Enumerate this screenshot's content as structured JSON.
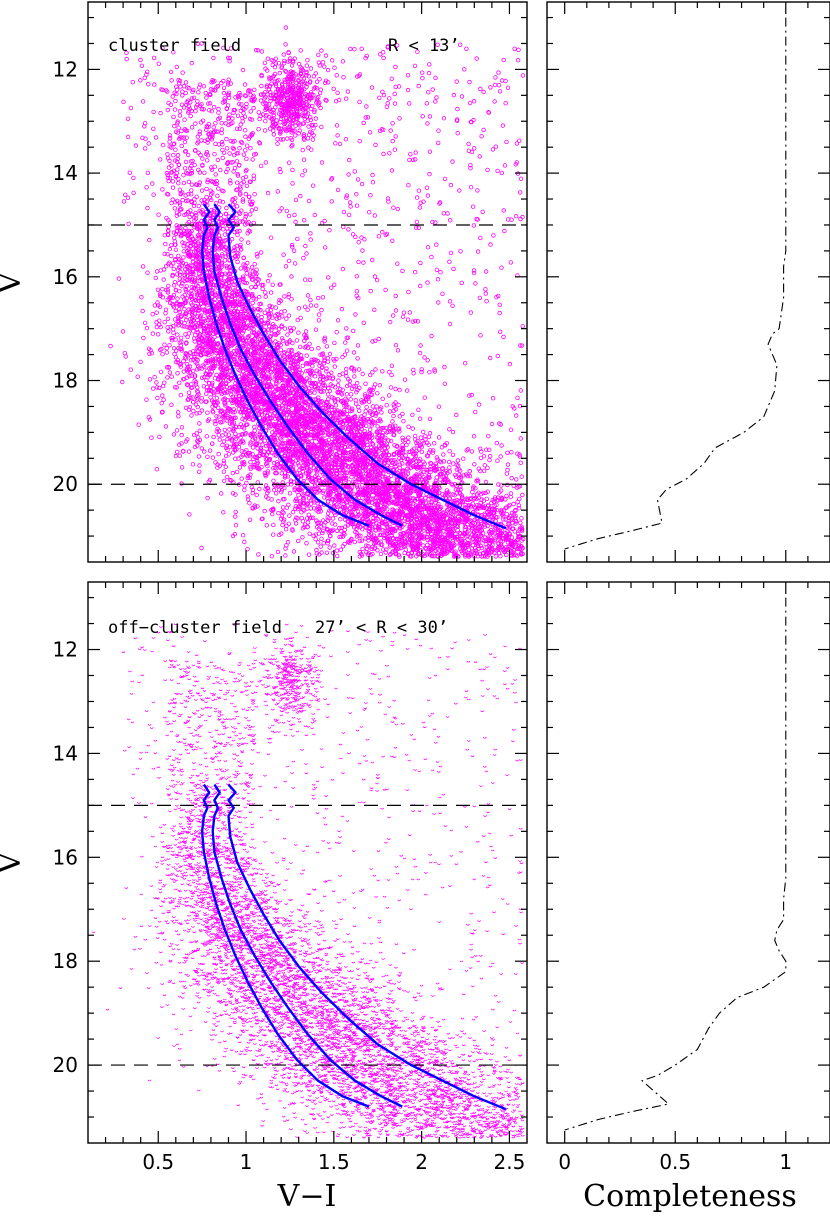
{
  "figure": {
    "xlabel_cmd": "V−I",
    "xlabel_completeness": "Completeness",
    "ylabel": "V"
  },
  "chart_data": [
    {
      "type": "scatter",
      "panel": "top-left",
      "title": "",
      "annotations": [
        "cluster field",
        "R < 13’"
      ],
      "xlabel": "V−I",
      "ylabel": "V",
      "xlim": [
        0.1,
        2.6
      ],
      "ylim": [
        21.5,
        10.7
      ],
      "x_ticks": [
        "0.5",
        "1",
        "1.5",
        "2",
        "2.5"
      ],
      "y_ticks": [
        "12",
        "14",
        "16",
        "18",
        "20"
      ],
      "y_ticks_values": [
        12,
        14,
        16,
        18,
        20
      ],
      "x_ticks_values": [
        0.5,
        1,
        1.5,
        2,
        2.5
      ],
      "reference_lines_V": [
        15,
        20
      ],
      "point_color": "#ff00ff",
      "point_marker": "open-circle",
      "curve_color": "#0000ff",
      "curves": [
        {
          "x": [
            0.76,
            0.79,
            0.76,
            0.78,
            0.76,
            0.75,
            0.76,
            0.79,
            0.83,
            0.88,
            0.94,
            1.01,
            1.09,
            1.18,
            1.29,
            1.41,
            1.55,
            1.7
          ],
          "y": [
            14.6,
            14.75,
            14.9,
            15.05,
            15.2,
            15.5,
            15.9,
            16.4,
            16.9,
            17.4,
            17.9,
            18.4,
            18.9,
            19.4,
            19.9,
            20.3,
            20.6,
            20.8
          ]
        },
        {
          "x": [
            0.82,
            0.85,
            0.82,
            0.84,
            0.82,
            0.81,
            0.82,
            0.86,
            0.91,
            0.97,
            1.05,
            1.14,
            1.24,
            1.35,
            1.48,
            1.62,
            1.77,
            1.89
          ],
          "y": [
            14.6,
            14.75,
            14.9,
            15.05,
            15.2,
            15.5,
            15.9,
            16.4,
            16.9,
            17.4,
            17.9,
            18.4,
            18.9,
            19.4,
            19.9,
            20.3,
            20.6,
            20.8
          ]
        },
        {
          "x": [
            0.9,
            0.94,
            0.9,
            0.93,
            0.9,
            0.91,
            0.95,
            1.02,
            1.1,
            1.19,
            1.3,
            1.43,
            1.58,
            1.75,
            1.94,
            2.12,
            2.3,
            2.48
          ],
          "y": [
            14.6,
            14.75,
            14.9,
            15.05,
            15.2,
            15.6,
            16.1,
            16.6,
            17.1,
            17.6,
            18.1,
            18.6,
            19.1,
            19.6,
            20.0,
            20.3,
            20.6,
            20.85
          ]
        }
      ]
    },
    {
      "type": "line",
      "panel": "top-right",
      "title": "",
      "xlabel": "Completeness",
      "xlim": [
        -0.08,
        1.2
      ],
      "ylim": [
        21.5,
        10.7
      ],
      "line_style": "dash-dot",
      "x": [
        1.0,
        1.0,
        0.99,
        0.99,
        0.97,
        0.94,
        0.92,
        0.96,
        0.95,
        0.9,
        0.81,
        0.68,
        0.63,
        0.55,
        0.46,
        0.42,
        0.44,
        0.3,
        0.15,
        0.0
      ],
      "y": [
        11.0,
        15.5,
        15.8,
        16.4,
        17.0,
        17.1,
        17.3,
        17.7,
        18.2,
        18.7,
        19.0,
        19.3,
        19.6,
        19.9,
        20.1,
        20.3,
        20.75,
        20.9,
        21.05,
        21.25
      ]
    },
    {
      "type": "scatter",
      "panel": "bottom-left",
      "title": "",
      "annotations": [
        "off−cluster field",
        "27’ < R < 30’"
      ],
      "xlabel": "V−I",
      "ylabel": "V",
      "xlim": [
        0.1,
        2.6
      ],
      "ylim": [
        21.5,
        10.7
      ],
      "x_ticks": [
        "0.5",
        "1",
        "1.5",
        "2",
        "2.5"
      ],
      "y_ticks": [
        "12",
        "14",
        "16",
        "18",
        "20"
      ],
      "y_ticks_values": [
        12,
        14,
        16,
        18,
        20
      ],
      "x_ticks_values": [
        0.5,
        1,
        1.5,
        2,
        2.5
      ],
      "reference_lines_V": [
        15,
        20
      ],
      "point_color": "#ff00ff",
      "point_marker": "small-arc",
      "curve_color": "#0000ff",
      "curves": [
        {
          "x": [
            0.76,
            0.79,
            0.76,
            0.78,
            0.76,
            0.75,
            0.76,
            0.79,
            0.83,
            0.88,
            0.94,
            1.01,
            1.09,
            1.18,
            1.29,
            1.41,
            1.55,
            1.7
          ],
          "y": [
            14.6,
            14.75,
            14.9,
            15.05,
            15.2,
            15.5,
            15.9,
            16.4,
            16.9,
            17.4,
            17.9,
            18.4,
            18.9,
            19.4,
            19.9,
            20.3,
            20.6,
            20.8
          ]
        },
        {
          "x": [
            0.82,
            0.85,
            0.82,
            0.84,
            0.82,
            0.81,
            0.82,
            0.86,
            0.91,
            0.97,
            1.05,
            1.14,
            1.24,
            1.35,
            1.48,
            1.62,
            1.77,
            1.89
          ],
          "y": [
            14.6,
            14.75,
            14.9,
            15.05,
            15.2,
            15.5,
            15.9,
            16.4,
            16.9,
            17.4,
            17.9,
            18.4,
            18.9,
            19.4,
            19.9,
            20.3,
            20.6,
            20.8
          ]
        },
        {
          "x": [
            0.9,
            0.94,
            0.9,
            0.93,
            0.9,
            0.91,
            0.95,
            1.02,
            1.1,
            1.19,
            1.3,
            1.43,
            1.58,
            1.75,
            1.94,
            2.12,
            2.3,
            2.48
          ],
          "y": [
            14.6,
            14.75,
            14.9,
            15.05,
            15.2,
            15.6,
            16.1,
            16.6,
            17.1,
            17.6,
            18.1,
            18.6,
            19.1,
            19.6,
            20.0,
            20.3,
            20.6,
            20.85
          ]
        }
      ]
    },
    {
      "type": "line",
      "panel": "bottom-right",
      "title": "",
      "xlabel": "Completeness",
      "x_ticks": [
        "0",
        "0.5",
        "1"
      ],
      "x_ticks_values": [
        0,
        0.5,
        1
      ],
      "xlim": [
        -0.08,
        1.2
      ],
      "ylim": [
        21.5,
        10.7
      ],
      "line_style": "dash-dot",
      "x": [
        1.0,
        1.0,
        0.99,
        0.99,
        0.96,
        0.95,
        0.97,
        1.0,
        1.0,
        0.9,
        0.78,
        0.7,
        0.65,
        0.6,
        0.5,
        0.42,
        0.35,
        0.47,
        0.3,
        0.15,
        0.0
      ],
      "y": [
        11.0,
        16.4,
        16.8,
        17.2,
        17.4,
        17.6,
        17.8,
        18.0,
        18.2,
        18.5,
        18.7,
        19.0,
        19.3,
        19.7,
        20.0,
        20.2,
        20.3,
        20.75,
        20.9,
        21.05,
        21.25
      ]
    }
  ]
}
